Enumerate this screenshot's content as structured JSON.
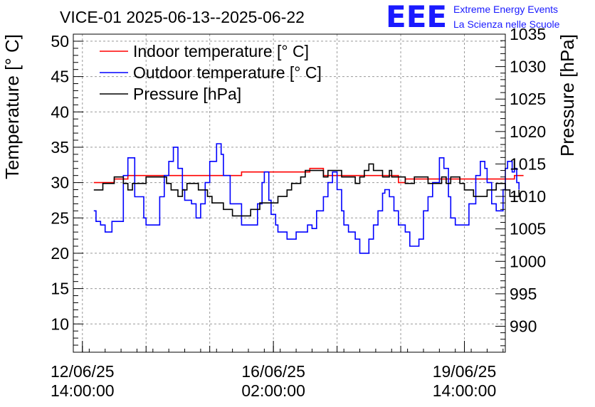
{
  "logo": {
    "text": "EEE",
    "line1": "Extreme Energy Events",
    "line2": "La Scienza nelle Scuole",
    "color": "#1a1aff"
  },
  "chart_data": {
    "type": "line",
    "title": "VICE-01 2025-06-13--2025-06-22",
    "ylabel": "Temperature [° C]",
    "y2label": "Pressure [hPa]",
    "ylim": [
      6,
      51
    ],
    "y2lim": [
      986,
      1035
    ],
    "y_ticks": [
      "10",
      "15",
      "20",
      "25",
      "30",
      "35",
      "40",
      "45",
      "50"
    ],
    "y2_ticks": [
      "990",
      "995",
      "1000",
      "1005",
      "1010",
      "1015",
      "1020",
      "1025",
      "1030",
      "1035"
    ],
    "x_ticks": [
      {
        "date": "12/06/25",
        "time": "14:00:00",
        "hours": 0
      },
      {
        "date": "16/06/25",
        "time": "02:00:00",
        "hours": 84
      },
      {
        "date": "19/06/25",
        "time": "14:00:00",
        "hours": 168
      }
    ],
    "x_range_hours": [
      -4,
      186
    ],
    "grid": true,
    "legend_position": "top-left",
    "series": [
      {
        "name": "Indoor temperature [° C]",
        "color": "#ff0000",
        "axis": "left",
        "points": [
          [
            5,
            30
          ],
          [
            12,
            30
          ],
          [
            14,
            30.5
          ],
          [
            20,
            31
          ],
          [
            50,
            31
          ],
          [
            70,
            31.5
          ],
          [
            100,
            32
          ],
          [
            105,
            32
          ],
          [
            106,
            31
          ],
          [
            130,
            31
          ],
          [
            139,
            30
          ],
          [
            142,
            30.5
          ],
          [
            190,
            31
          ],
          [
            194,
            31
          ]
        ]
      },
      {
        "name": "Outdoor temperature [° C]",
        "color": "#0000ff",
        "axis": "left",
        "points": [
          [
            5,
            26
          ],
          [
            6,
            24.5
          ],
          [
            8,
            24
          ],
          [
            10,
            23
          ],
          [
            13,
            24.5
          ],
          [
            18,
            31
          ],
          [
            20,
            33.5
          ],
          [
            23,
            28
          ],
          [
            27,
            25
          ],
          [
            28,
            24
          ],
          [
            31,
            24
          ],
          [
            34,
            28
          ],
          [
            36,
            31
          ],
          [
            38,
            33
          ],
          [
            40,
            35
          ],
          [
            42,
            32
          ],
          [
            44,
            29
          ],
          [
            45,
            27.5
          ],
          [
            48,
            27
          ],
          [
            50,
            25
          ],
          [
            52,
            27
          ],
          [
            54,
            30
          ],
          [
            56,
            33
          ],
          [
            59,
            35.5
          ],
          [
            61,
            34
          ],
          [
            62,
            31
          ],
          [
            65,
            27
          ],
          [
            70,
            24
          ],
          [
            72,
            24
          ],
          [
            75,
            24
          ],
          [
            77,
            27
          ],
          [
            79,
            30
          ],
          [
            80,
            31.5
          ],
          [
            82,
            27.5
          ],
          [
            83,
            25.5
          ],
          [
            85,
            24
          ],
          [
            86,
            23
          ],
          [
            88,
            23
          ],
          [
            90,
            22
          ],
          [
            92,
            22
          ],
          [
            94,
            23
          ],
          [
            96,
            23
          ],
          [
            99,
            24
          ],
          [
            101,
            23.5
          ],
          [
            103,
            26
          ],
          [
            106,
            28
          ],
          [
            108,
            30
          ],
          [
            110,
            31.5
          ],
          [
            112,
            29
          ],
          [
            114,
            26
          ],
          [
            115,
            24
          ],
          [
            117,
            23
          ],
          [
            120,
            22
          ],
          [
            122,
            20
          ],
          [
            124,
            20
          ],
          [
            126,
            22
          ],
          [
            128,
            24
          ],
          [
            130,
            26
          ],
          [
            132,
            28.5
          ],
          [
            133,
            29
          ],
          [
            135,
            28
          ],
          [
            137,
            26
          ],
          [
            139,
            24
          ],
          [
            142,
            23
          ],
          [
            144,
            21
          ],
          [
            146,
            21
          ],
          [
            148,
            22
          ],
          [
            150,
            26
          ],
          [
            152,
            28
          ],
          [
            154,
            30
          ],
          [
            157,
            33.5
          ],
          [
            159,
            32
          ],
          [
            161,
            28
          ],
          [
            162,
            25
          ],
          [
            164,
            24
          ],
          [
            166,
            24
          ],
          [
            168,
            24
          ],
          [
            170,
            27
          ],
          [
            173,
            31
          ],
          [
            175,
            33
          ],
          [
            177,
            32
          ],
          [
            178,
            30
          ],
          [
            180,
            27
          ],
          [
            182,
            26
          ],
          [
            183,
            26
          ],
          [
            185,
            29
          ],
          [
            186,
            32
          ],
          [
            187,
            33
          ],
          [
            189,
            31.5
          ],
          [
            190,
            32
          ],
          [
            191,
            30
          ],
          [
            192,
            29
          ]
        ]
      },
      {
        "name": "Pressure [hPa]",
        "color": "#000000",
        "axis": "right",
        "points": [
          [
            5,
            1011
          ],
          [
            8,
            1011
          ],
          [
            9,
            1012
          ],
          [
            12,
            1012
          ],
          [
            14,
            1013
          ],
          [
            16,
            1013
          ],
          [
            18,
            1012
          ],
          [
            20,
            1011
          ],
          [
            22,
            1012
          ],
          [
            26,
            1012
          ],
          [
            28,
            1013
          ],
          [
            35,
            1013
          ],
          [
            37,
            1012
          ],
          [
            39,
            1011
          ],
          [
            42,
            1010
          ],
          [
            44,
            1011
          ],
          [
            46,
            1012
          ],
          [
            50,
            1012
          ],
          [
            51,
            1011
          ],
          [
            54,
            1011
          ],
          [
            55,
            1010
          ],
          [
            57,
            1009
          ],
          [
            60,
            1009
          ],
          [
            62,
            1008
          ],
          [
            64,
            1008
          ],
          [
            66,
            1007
          ],
          [
            70,
            1007
          ],
          [
            72,
            1007
          ],
          [
            74,
            1008
          ],
          [
            76,
            1008
          ],
          [
            78,
            1009
          ],
          [
            80,
            1009
          ],
          [
            82,
            1009
          ],
          [
            84,
            1009
          ],
          [
            86,
            1010
          ],
          [
            88,
            1010
          ],
          [
            90,
            1011
          ],
          [
            92,
            1012
          ],
          [
            94,
            1012
          ],
          [
            96,
            1013
          ],
          [
            98,
            1014
          ],
          [
            104,
            1014
          ],
          [
            106,
            1013
          ],
          [
            108,
            1014
          ],
          [
            112,
            1014
          ],
          [
            114,
            1013
          ],
          [
            116,
            1013
          ],
          [
            118,
            1013
          ],
          [
            120,
            1012
          ],
          [
            122,
            1013
          ],
          [
            124,
            1014
          ],
          [
            126,
            1015
          ],
          [
            128,
            1014
          ],
          [
            130,
            1014
          ],
          [
            132,
            1013
          ],
          [
            133,
            1013
          ],
          [
            135,
            1014
          ],
          [
            136,
            1013
          ],
          [
            138,
            1013
          ],
          [
            140,
            1013
          ],
          [
            142,
            1012
          ],
          [
            144,
            1012
          ],
          [
            146,
            1013
          ],
          [
            150,
            1013
          ],
          [
            152,
            1012
          ],
          [
            156,
            1012
          ],
          [
            158,
            1013
          ],
          [
            160,
            1012
          ],
          [
            162,
            1013
          ],
          [
            164,
            1013
          ],
          [
            166,
            1012
          ],
          [
            168,
            1011
          ],
          [
            170,
            1011
          ],
          [
            172,
            1010
          ],
          [
            174,
            1010
          ],
          [
            176,
            1010
          ],
          [
            178,
            1011
          ],
          [
            180,
            1011
          ],
          [
            182,
            1012
          ],
          [
            184,
            1012
          ],
          [
            186,
            1011
          ],
          [
            188,
            1010
          ],
          [
            190,
            1010
          ],
          [
            192,
            1011
          ]
        ]
      }
    ]
  }
}
